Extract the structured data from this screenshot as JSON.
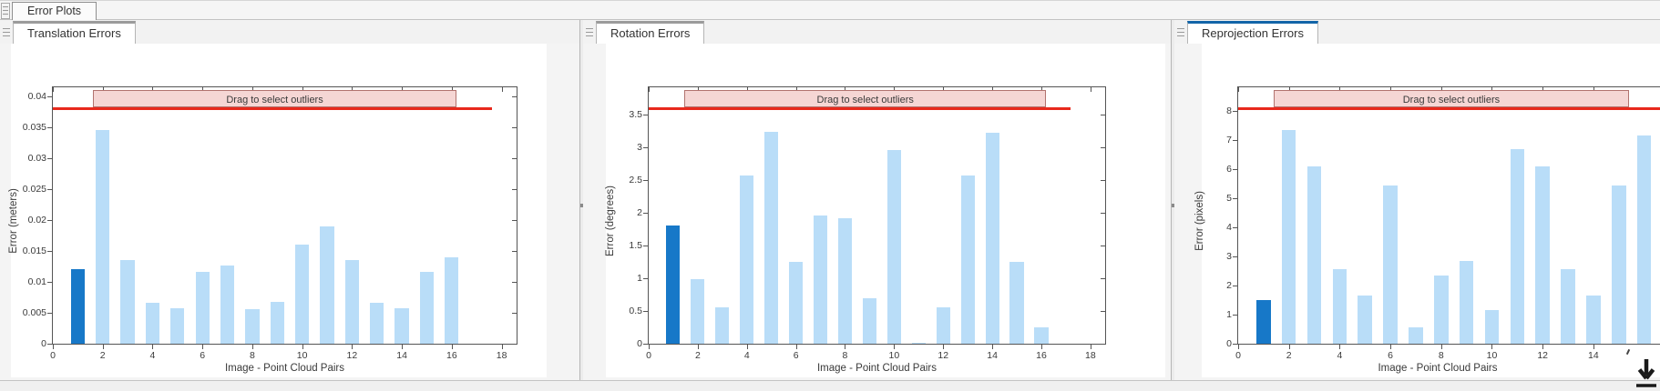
{
  "document_tab": {
    "label": "Error Plots"
  },
  "ui_colors": {
    "bar_light": "#b9ddf8",
    "bar_dark": "#1778c8",
    "threshold_red": "#e8291c",
    "band_fill": "#f5d6d4",
    "band_border": "#b2736f",
    "active_tab_accent": "#1265a8"
  },
  "chart_data": [
    {
      "type": "bar",
      "tab_label": "Translation Errors",
      "tab_active": false,
      "xlabel": "Image - Point Cloud Pairs",
      "ylabel": "Error (meters)",
      "band_label": "Drag to select outliers",
      "x": [
        1,
        2,
        3,
        4,
        5,
        6,
        7,
        8,
        9,
        10,
        11,
        12,
        13,
        14,
        15,
        16
      ],
      "values": [
        0.012,
        0.0345,
        0.0135,
        0.0066,
        0.0058,
        0.0116,
        0.0127,
        0.0056,
        0.0067,
        0.016,
        0.0189,
        0.0135,
        0.0066,
        0.0058,
        0.0116,
        0.014
      ],
      "highlight_index": 0,
      "bar_width": 0.56,
      "threshold": 0.038,
      "threshold_x_end": 17.6,
      "band_x": [
        1.6,
        16.2
      ],
      "ylim": [
        0,
        0.0414
      ],
      "yticks": [
        0,
        0.005,
        0.01,
        0.015,
        0.02,
        0.025,
        0.03,
        0.035,
        0.04
      ],
      "ytick_labels": [
        "0",
        "0.005",
        "0.01",
        "0.015",
        "0.02",
        "0.025",
        "0.03",
        "0.035",
        "0.04"
      ],
      "xlim": [
        0,
        18.6
      ],
      "xticks": [
        0,
        2,
        4,
        6,
        8,
        10,
        12,
        14,
        16,
        18
      ],
      "grid": false,
      "legend": null
    },
    {
      "type": "bar",
      "tab_label": "Rotation Errors",
      "tab_active": false,
      "xlabel": "Image - Point Cloud Pairs",
      "ylabel": "Error (degrees)",
      "band_label": "Drag to select outliers",
      "x": [
        1,
        2,
        3,
        4,
        5,
        6,
        7,
        8,
        9,
        10,
        11,
        12,
        13,
        14,
        15,
        16
      ],
      "values": [
        1.8,
        0.98,
        0.56,
        2.56,
        3.23,
        1.25,
        1.95,
        1.92,
        0.7,
        2.95,
        0.02,
        0.55,
        2.56,
        3.22,
        1.25,
        0.25
      ],
      "highlight_index": 0,
      "bar_width": 0.56,
      "threshold": 3.59,
      "threshold_x_end": 17.2,
      "band_x": [
        1.45,
        16.2
      ],
      "ylim": [
        0,
        3.91
      ],
      "yticks": [
        0,
        0.5,
        1,
        1.5,
        2,
        2.5,
        3,
        3.5
      ],
      "ytick_labels": [
        "0",
        "0.5",
        "1",
        "1.5",
        "2",
        "2.5",
        "3",
        "3.5"
      ],
      "xlim": [
        0,
        18.6
      ],
      "xticks": [
        0,
        2,
        4,
        6,
        8,
        10,
        12,
        14,
        16,
        18
      ],
      "grid": false,
      "legend": null
    },
    {
      "type": "bar",
      "tab_label": "Reprojection Errors",
      "tab_active": true,
      "xlabel": "Image - Point Cloud Pairs",
      "ylabel": "Error (pixels)",
      "band_label": "Drag to select outliers",
      "x": [
        1,
        2,
        3,
        4,
        5,
        6,
        7,
        8,
        9,
        10,
        11,
        12,
        13,
        14,
        15,
        16
      ],
      "values": [
        1.5,
        7.35,
        6.1,
        2.55,
        1.65,
        5.45,
        0.55,
        2.35,
        2.85,
        1.15,
        6.7,
        6.1,
        2.55,
        1.65,
        5.45,
        7.15
      ],
      "highlight_index": 0,
      "bar_width": 0.56,
      "threshold": 8.08,
      "threshold_x_end": 18.6,
      "band_x": [
        1.4,
        15.4
      ],
      "ylim": [
        0,
        8.81
      ],
      "yticks": [
        0,
        1,
        2,
        3,
        4,
        5,
        6,
        7,
        8
      ],
      "ytick_labels": [
        "0",
        "1",
        "2",
        "3",
        "4",
        "5",
        "6",
        "7",
        "8"
      ],
      "xlim": [
        0,
        18.6
      ],
      "xticks": [
        0,
        2,
        4,
        6,
        8,
        10,
        12,
        14
      ],
      "clipped_right": true,
      "grid": false,
      "legend": null
    }
  ]
}
